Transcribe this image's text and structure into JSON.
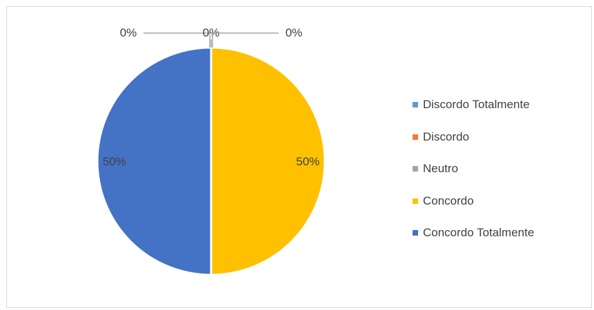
{
  "chart_data": {
    "type": "pie",
    "categories": [
      "Discordo Totalmente",
      "Discordo",
      "Neutro",
      "Concordo",
      "Concordo Totalmente"
    ],
    "values": [
      0,
      0,
      0,
      50,
      50
    ],
    "labels": [
      "0%",
      "0%",
      "0%",
      "50%",
      "50%"
    ],
    "colors": [
      "#5b9bd5",
      "#ed7d31",
      "#a5a5a5",
      "#ffc000",
      "#4472c4"
    ],
    "legend_position": "right"
  }
}
